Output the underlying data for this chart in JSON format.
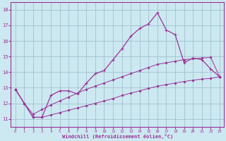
{
  "xlabel": "Windchill (Refroidissement éolien,°C)",
  "x": [
    0,
    1,
    2,
    3,
    4,
    5,
    6,
    7,
    8,
    9,
    10,
    11,
    12,
    13,
    14,
    15,
    16,
    17,
    18,
    19,
    20,
    21,
    22,
    23
  ],
  "y_main": [
    12.9,
    12.0,
    11.1,
    11.1,
    12.5,
    12.8,
    12.8,
    12.6,
    13.3,
    13.9,
    14.1,
    14.8,
    15.5,
    16.3,
    16.8,
    17.1,
    17.8,
    16.7,
    16.4,
    14.6,
    14.9,
    14.8,
    14.2,
    13.7
  ],
  "y_upper": [
    12.9,
    12.0,
    11.3,
    11.6,
    11.9,
    12.15,
    12.4,
    12.65,
    12.9,
    13.1,
    13.3,
    13.5,
    13.7,
    13.9,
    14.1,
    14.3,
    14.5,
    14.6,
    14.7,
    14.8,
    14.85,
    14.9,
    14.95,
    13.7
  ],
  "y_lower": [
    12.9,
    12.0,
    11.1,
    11.1,
    11.25,
    11.4,
    11.55,
    11.7,
    11.85,
    12.0,
    12.15,
    12.3,
    12.5,
    12.65,
    12.8,
    12.95,
    13.1,
    13.2,
    13.3,
    13.4,
    13.48,
    13.55,
    13.6,
    13.7
  ],
  "line_color": "#993399",
  "bg_color": "#cce8f0",
  "grid_color": "#99bbcc",
  "ylim": [
    10.5,
    18.5
  ],
  "xlim": [
    -0.5,
    23.5
  ],
  "yticks": [
    11,
    12,
    13,
    14,
    15,
    16,
    17,
    18
  ],
  "xticks": [
    0,
    1,
    2,
    3,
    4,
    5,
    6,
    7,
    8,
    9,
    10,
    11,
    12,
    13,
    14,
    15,
    16,
    17,
    18,
    19,
    20,
    21,
    22,
    23
  ]
}
